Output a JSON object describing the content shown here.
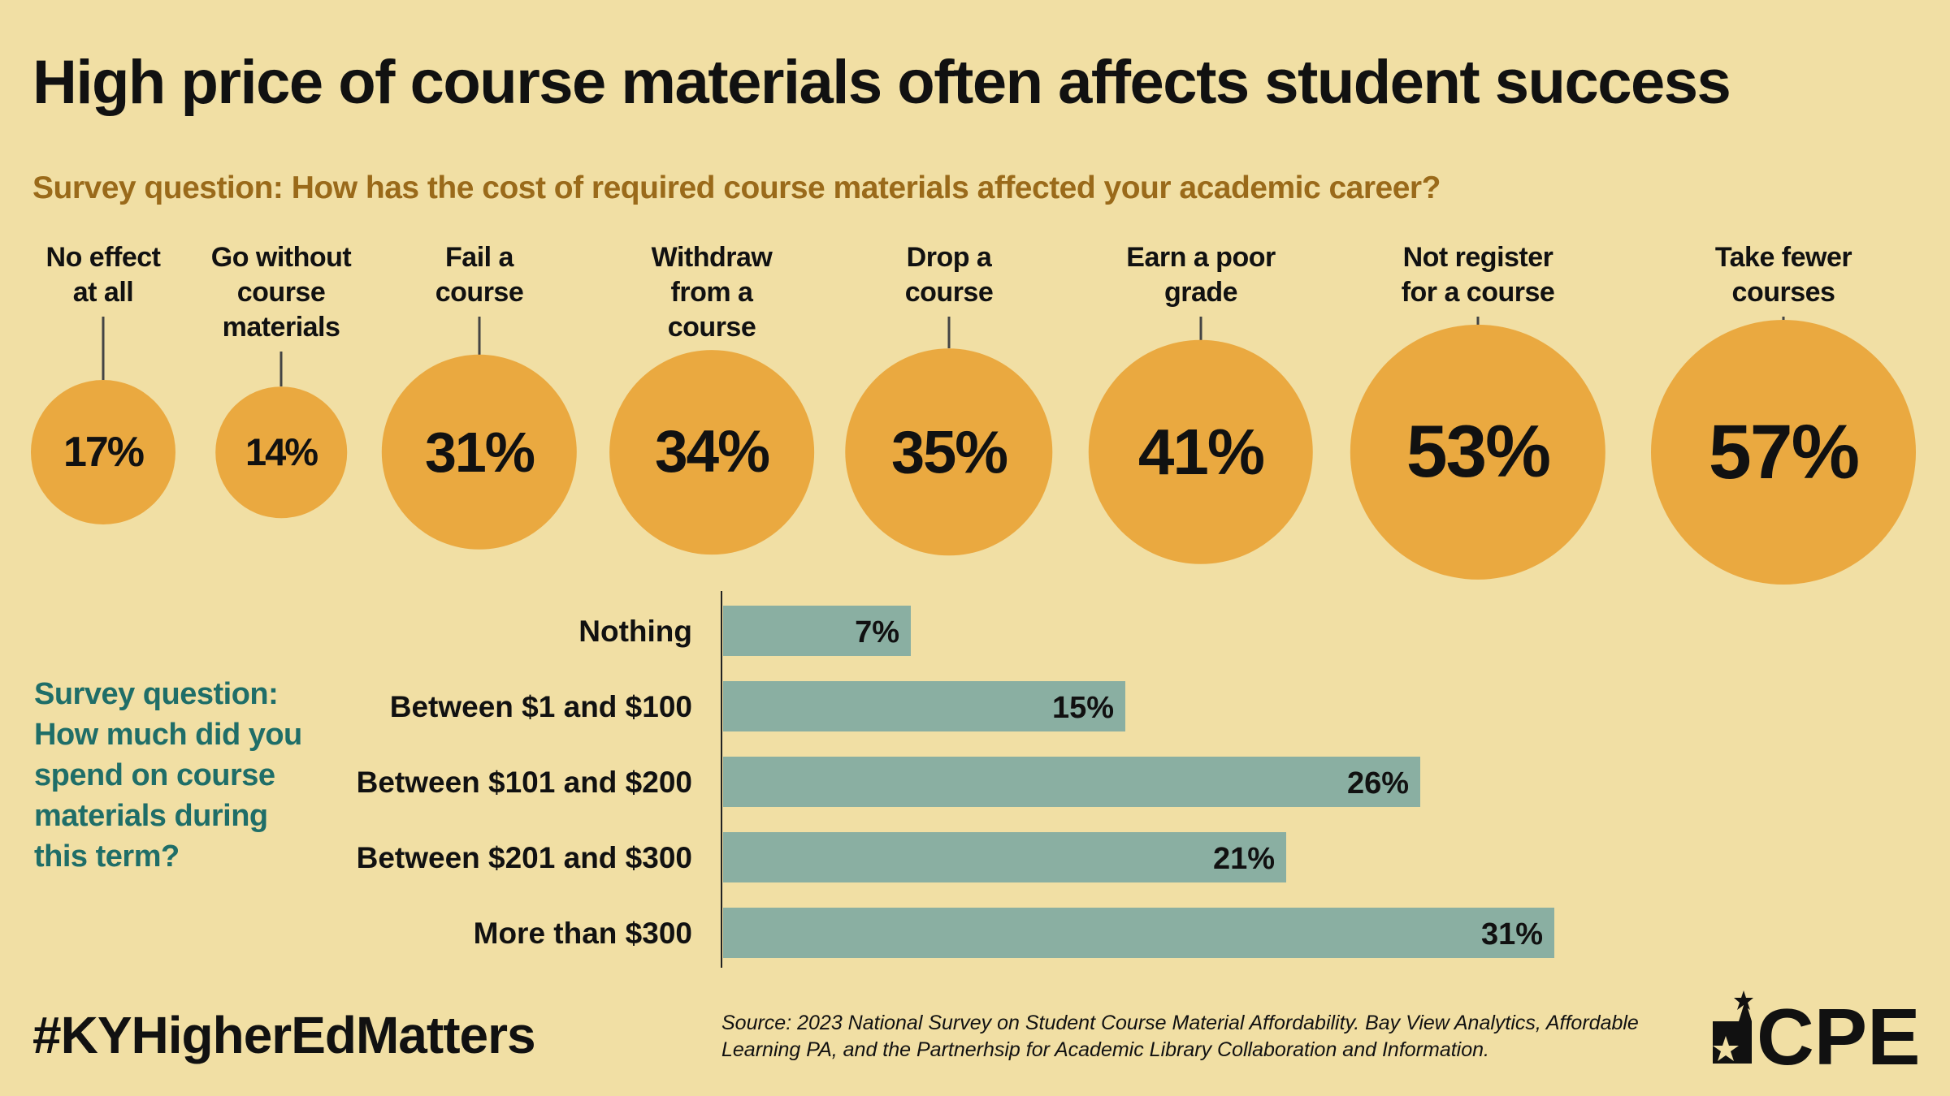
{
  "title": "High price of course materials often affects student success",
  "colors": {
    "background": "#f1dfa4",
    "bubble": "#eaa940",
    "bar": "#8aafa2",
    "question2": "#1f6e68",
    "question1": "#9a6a1a"
  },
  "chart_data": [
    {
      "type": "bubble",
      "title": "Survey question: How has the cost of required course materials affected your academic career?",
      "categories": [
        [
          "No effect",
          "at all"
        ],
        [
          "Go without",
          "course",
          "materials"
        ],
        [
          "Fail a",
          "course"
        ],
        [
          "Withdraw",
          "from a",
          "course"
        ],
        [
          "Drop a",
          "course"
        ],
        [
          "Earn a poor",
          "grade"
        ],
        [
          "Not register",
          "for a course"
        ],
        [
          "Take fewer",
          "courses"
        ]
      ],
      "values": [
        17,
        14,
        31,
        34,
        35,
        41,
        53,
        57
      ],
      "value_labels": [
        "17%",
        "14%",
        "31%",
        "34%",
        "35%",
        "41%",
        "53%",
        "57%"
      ]
    },
    {
      "type": "bar",
      "orientation": "horizontal",
      "title": "Survey question: How much did you spend on course materials during this term?",
      "categories": [
        "Nothing",
        "Between $1 and $100",
        "Between $101 and $200",
        "Between $201 and $300",
        "More than $300"
      ],
      "values": [
        7,
        15,
        26,
        21,
        31
      ],
      "value_labels": [
        "7%",
        "15%",
        "26%",
        "21%",
        "31%"
      ]
    }
  ],
  "footer": {
    "hashtag": "#KYHigherEdMatters",
    "source": "Source: 2023 National Survey on Student Course Material Affordability. Bay View Analytics, Affordable Learning PA, and the Partnerhsip for Academic Library Collaboration and Information.",
    "logo_text": "CPE"
  }
}
